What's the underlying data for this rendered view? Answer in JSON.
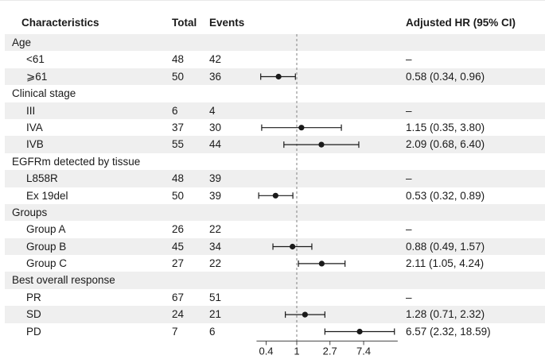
{
  "colors": {
    "stripe": "#efefef",
    "text": "#1a1a1a",
    "marker": "#1a1a1a",
    "refline": "#808080",
    "axis": "#444444"
  },
  "chart_data": {
    "type": "forest",
    "scale": "log",
    "title": "",
    "columns": {
      "characteristics": "Characteristics",
      "total": "Total",
      "events": "Events",
      "hr": "Adjusted HR (95% CI)"
    },
    "x_ticks": [
      0.4,
      1,
      2.7,
      7.4
    ],
    "x_tick_labels": [
      "0.4",
      "1",
      "2.7",
      "7.4"
    ],
    "x_range": [
      0.3,
      20.5
    ],
    "ref_line": 1,
    "rows": [
      {
        "label": "Age",
        "group": true
      },
      {
        "label": "<61",
        "total": 48,
        "events": 42,
        "hr_text": "–",
        "reference": true
      },
      {
        "label": "⩾61",
        "total": 50,
        "events": 36,
        "hr": 0.58,
        "ci_low": 0.34,
        "ci_high": 0.96,
        "hr_text": "0.58 (0.34, 0.96)"
      },
      {
        "label": "Clinical stage",
        "group": true
      },
      {
        "label": "III",
        "total": 6,
        "events": 4,
        "hr_text": "–",
        "reference": true
      },
      {
        "label": "IVA",
        "total": 37,
        "events": 30,
        "hr": 1.15,
        "ci_low": 0.35,
        "ci_high": 3.8,
        "hr_text": "1.15 (0.35, 3.80)"
      },
      {
        "label": "IVB",
        "total": 55,
        "events": 44,
        "hr": 2.09,
        "ci_low": 0.68,
        "ci_high": 6.4,
        "hr_text": "2.09 (0.68, 6.40)"
      },
      {
        "label": "EGFRm detected by tissue",
        "group": true
      },
      {
        "label": "L858R",
        "total": 48,
        "events": 39,
        "hr_text": "–",
        "reference": true
      },
      {
        "label": "Ex 19del",
        "total": 50,
        "events": 39,
        "hr": 0.53,
        "ci_low": 0.32,
        "ci_high": 0.89,
        "hr_text": "0.53 (0.32, 0.89)"
      },
      {
        "label": "Groups",
        "group": true
      },
      {
        "label": "Group A",
        "total": 26,
        "events": 22,
        "hr_text": "–",
        "reference": true
      },
      {
        "label": "Group B",
        "total": 45,
        "events": 34,
        "hr": 0.88,
        "ci_low": 0.49,
        "ci_high": 1.57,
        "hr_text": "0.88 (0.49, 1.57)"
      },
      {
        "label": "Group C",
        "total": 27,
        "events": 22,
        "hr": 2.11,
        "ci_low": 1.05,
        "ci_high": 4.24,
        "hr_text": "2.11 (1.05, 4.24)"
      },
      {
        "label": "Best overall response",
        "group": true
      },
      {
        "label": "PR",
        "total": 67,
        "events": 51,
        "hr_text": "–",
        "reference": true
      },
      {
        "label": "SD",
        "total": 24,
        "events": 21,
        "hr": 1.28,
        "ci_low": 0.71,
        "ci_high": 2.32,
        "hr_text": "1.28 (0.71, 2.32)"
      },
      {
        "label": "PD",
        "total": 7,
        "events": 6,
        "hr": 6.57,
        "ci_low": 2.32,
        "ci_high": 18.59,
        "hr_text": "6.57 (2.32, 18.59)"
      }
    ]
  }
}
